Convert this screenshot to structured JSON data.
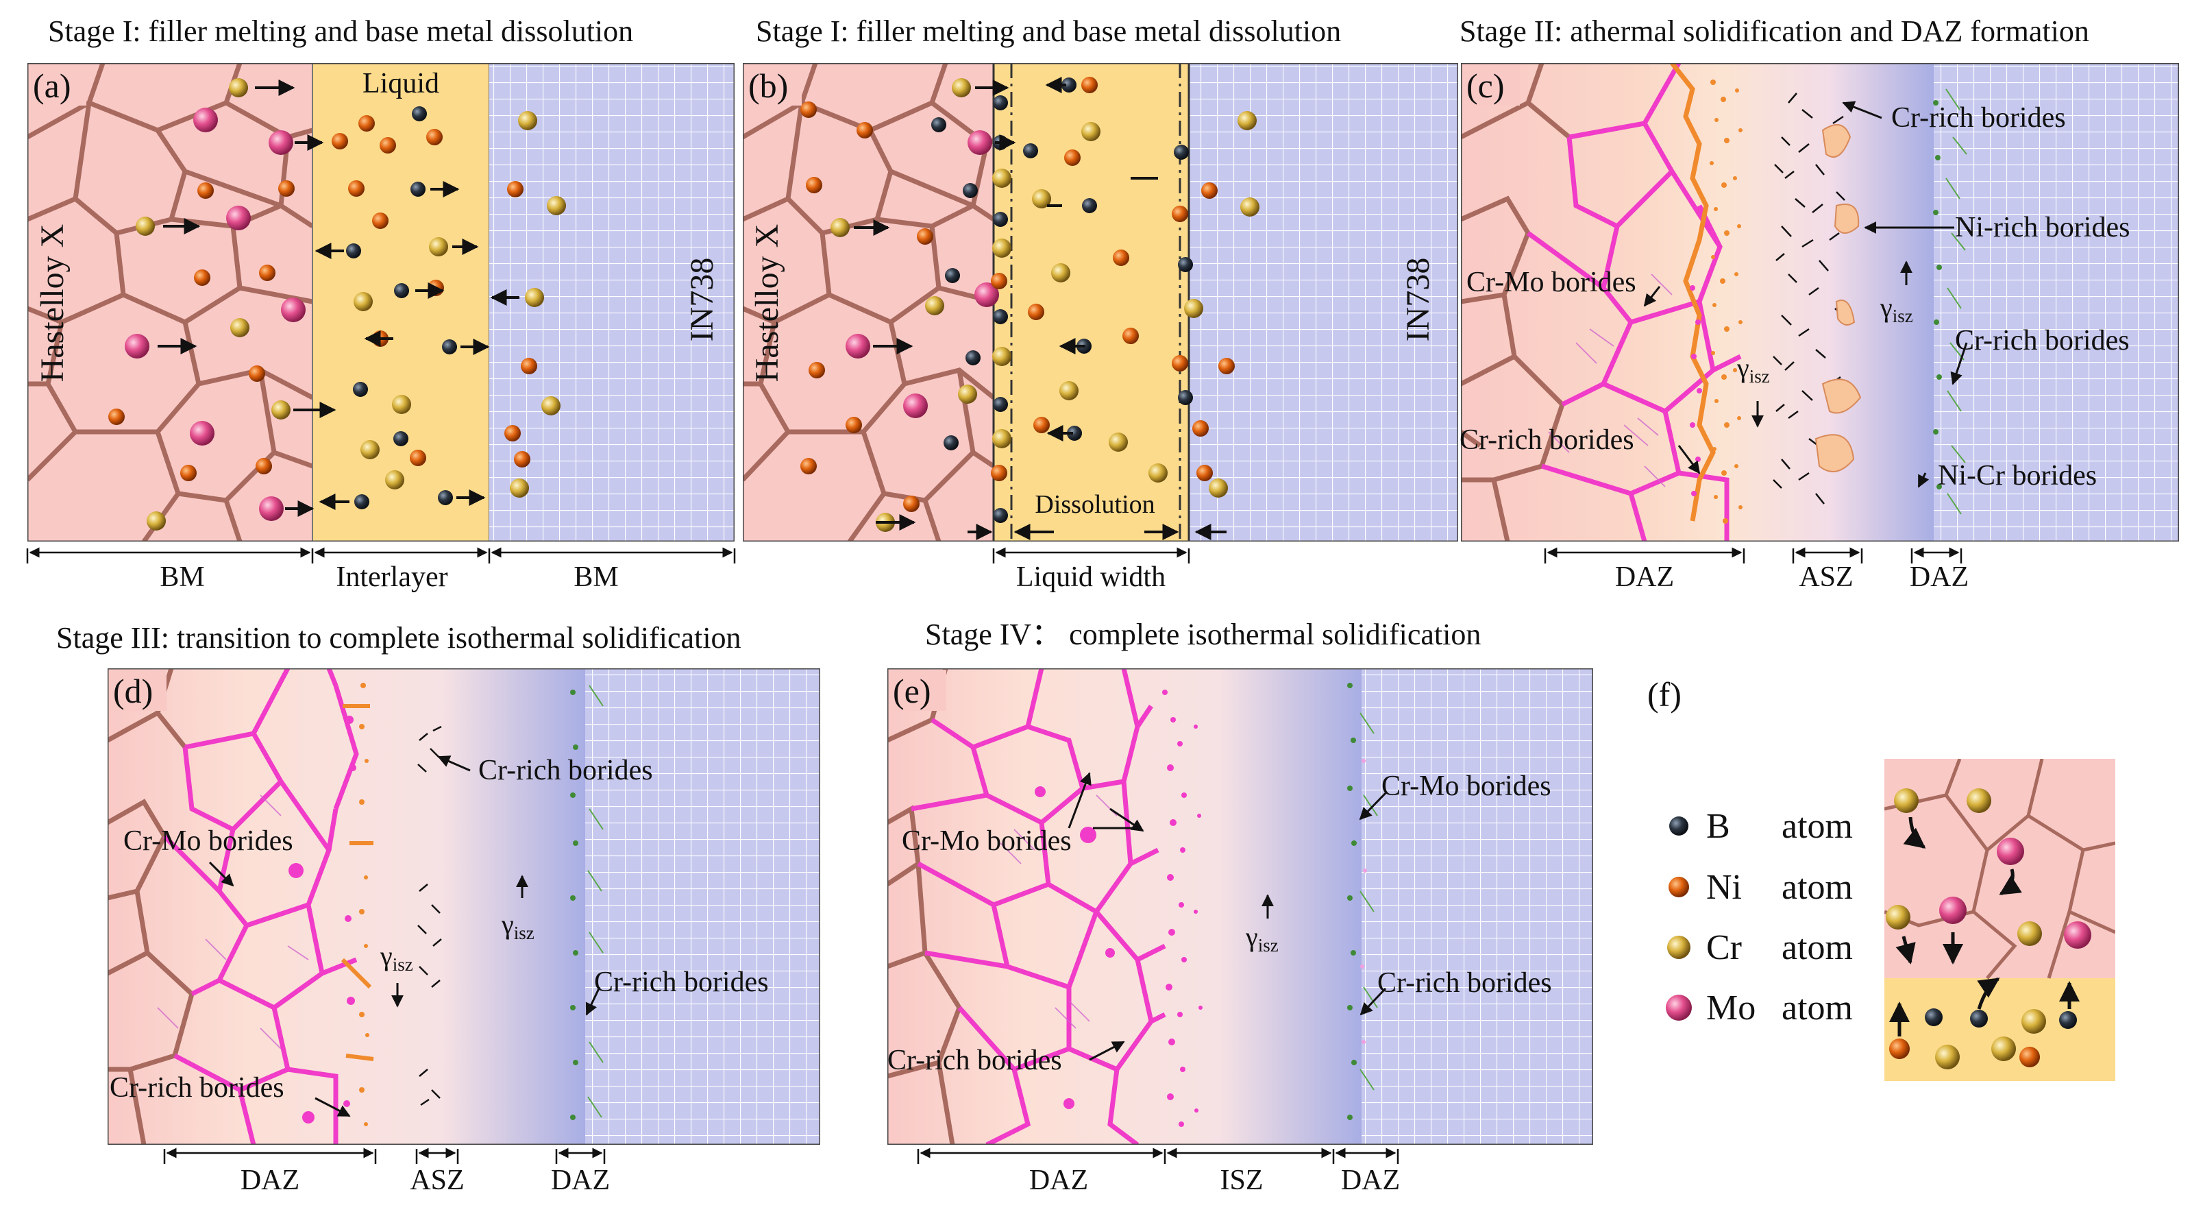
{
  "panels": {
    "a": {
      "stage_title": "Stage I: filler melting and base metal dissolution",
      "letter": "(a)",
      "labels": {
        "left_metal": "Hastelloy X",
        "right_metal": "IN738",
        "liquid": "Liquid"
      },
      "zone_labels": [
        "BM",
        "Interlayer",
        "BM"
      ]
    },
    "b": {
      "stage_title": "Stage I: filler melting and base metal dissolution",
      "letter": "(b)",
      "labels": {
        "left_metal": "Hastelloy X",
        "right_metal": "IN738",
        "dissolution": "Dissolution"
      },
      "zone_labels": [
        "Liquid width"
      ]
    },
    "c": {
      "stage_title": "Stage II: athermal solidification and DAZ formation",
      "letter": "(c)",
      "annotations": {
        "cr_rich_top": "Cr-rich borides",
        "ni_rich": "Ni-rich borides",
        "cr_mo": "Cr-Mo borides",
        "cr_rich_right": "Cr-rich borides",
        "cr_rich_left": "Cr-rich borides",
        "ni_cr": "Ni-Cr borides"
      },
      "gamma_base": "γ",
      "gamma_sub": "isz",
      "zone_labels": [
        "DAZ",
        "ASZ",
        "DAZ"
      ]
    },
    "d": {
      "stage_title": "Stage III: transition to complete isothermal solidification",
      "letter": "(d)",
      "annotations": {
        "cr_rich_top": "Cr-rich borides",
        "cr_mo": "Cr-Mo borides",
        "cr_rich_right": "Cr-rich borides",
        "cr_rich_left": "Cr-rich borides"
      },
      "gamma_base": "γ",
      "gamma_sub": "isz",
      "zone_labels": [
        "DAZ",
        "ASZ",
        "DAZ"
      ]
    },
    "e": {
      "stage_title": "Stage IV： complete isothermal solidification",
      "letter": "(e)",
      "annotations": {
        "cr_mo_right": "Cr-Mo borides",
        "cr_mo_left": "Cr-Mo borides",
        "cr_rich_right": "Cr-rich borides",
        "cr_rich_left": "Cr-rich borides"
      },
      "gamma_base": "γ",
      "gamma_sub": "isz",
      "zone_labels": [
        "DAZ",
        "ISZ",
        "DAZ"
      ]
    },
    "f": {
      "letter": "(f)",
      "legend": [
        {
          "symbol": "B",
          "word": "atom",
          "color": "#2b3440"
        },
        {
          "symbol": "Ni",
          "word": "atom",
          "color": "#e0620e"
        },
        {
          "symbol": "Cr",
          "word": "atom",
          "color": "#d8b23c"
        },
        {
          "symbol": "Mo",
          "word": "atom",
          "color": "#e44f8e"
        }
      ]
    }
  },
  "colors": {
    "hastelloy_bg": "#f9c9c6",
    "grain_boundary": "#a86a5e",
    "liquid": "#fcdb8c",
    "in738_bg": "#c6c8ee",
    "grid_line": "#ffffff",
    "daz_boundary": "#f03cc8",
    "orange_boride": "#f08a2c",
    "diffusion_blue": "#aab0e6"
  }
}
